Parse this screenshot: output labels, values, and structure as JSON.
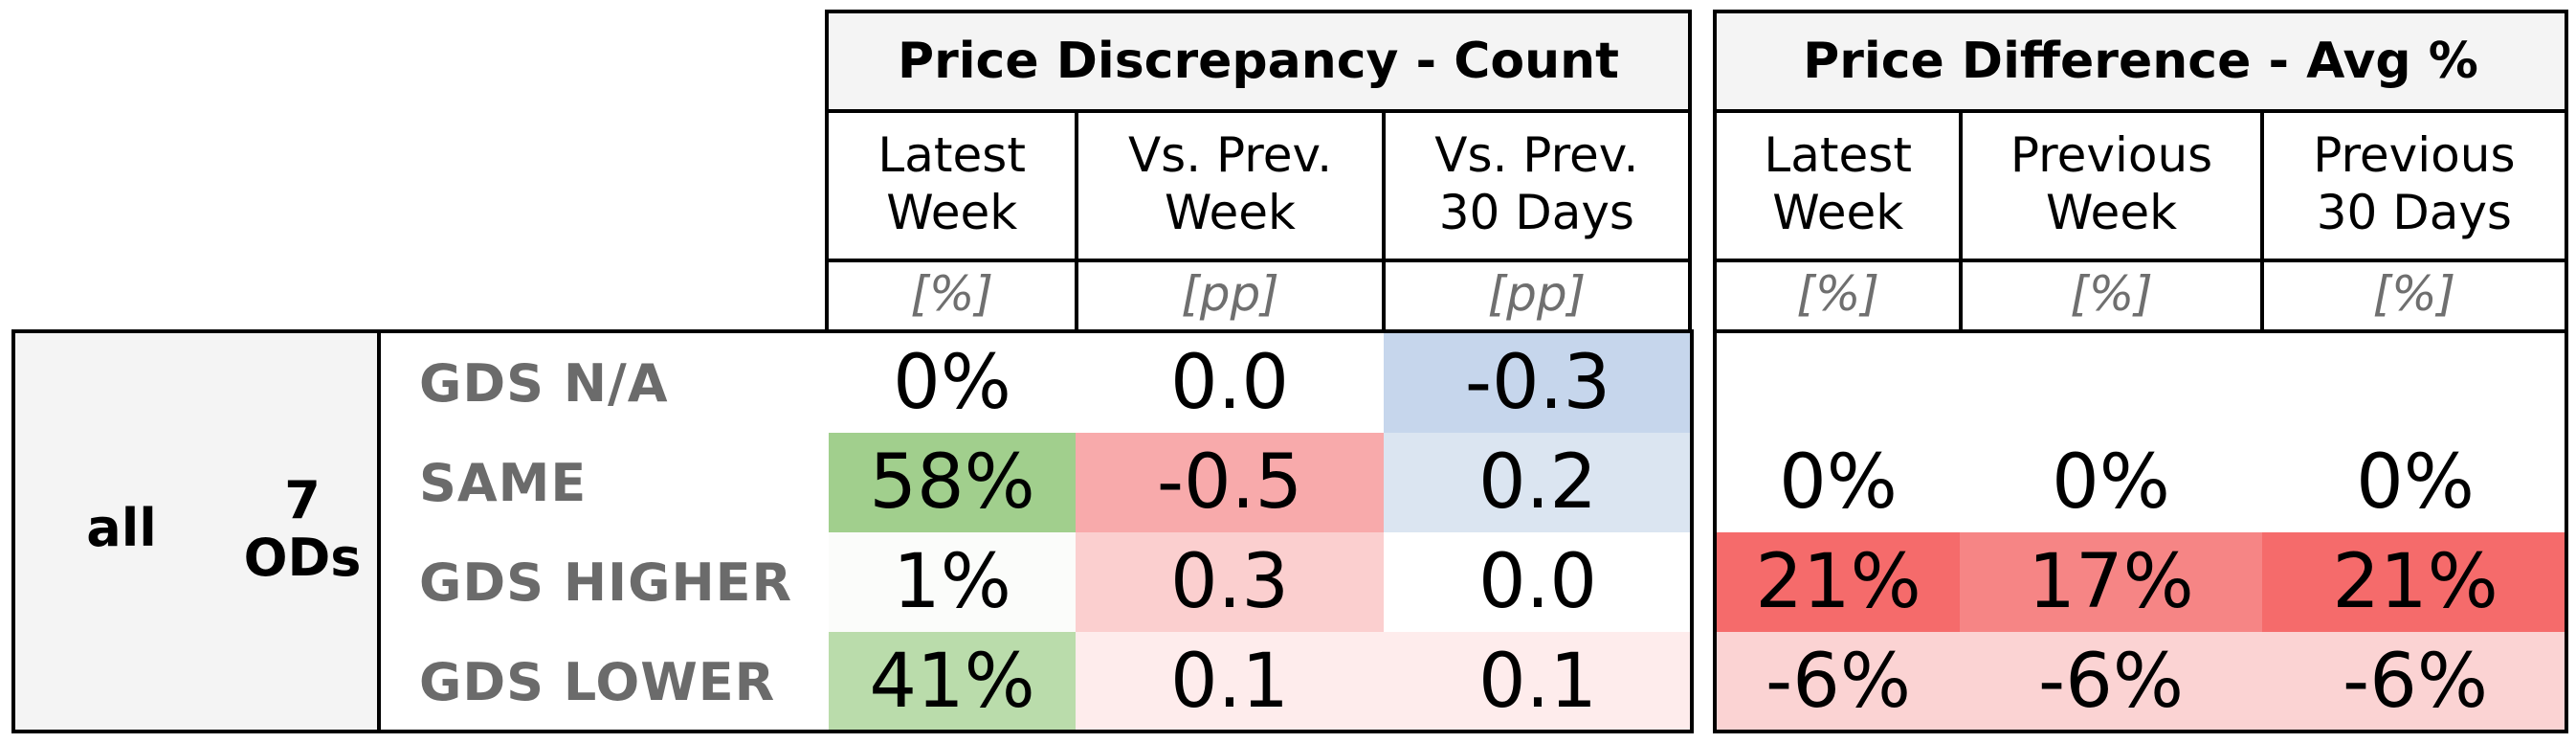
{
  "chart_data": {
    "type": "table",
    "segment": {
      "label": "all",
      "count_label": "7\nODs"
    },
    "groups": [
      {
        "title": "Price Discrepancy - Count",
        "columns": [
          {
            "header": "Latest\nWeek",
            "unit": "[%]"
          },
          {
            "header": "Vs. Prev.\nWeek",
            "unit": "[pp]"
          },
          {
            "header": "Vs. Prev.\n30 Days",
            "unit": "[pp]"
          }
        ]
      },
      {
        "title": "Price Difference - Avg %",
        "columns": [
          {
            "header": "Latest\nWeek",
            "unit": "[%]"
          },
          {
            "header": "Previous\nWeek",
            "unit": "[%]"
          },
          {
            "header": "Previous\n30 Days",
            "unit": "[%]"
          }
        ]
      }
    ],
    "rows": [
      {
        "label": "GDS N/A",
        "count": [
          {
            "text": "0%",
            "color": "#ffffff"
          },
          {
            "text": "0.0",
            "color": "#ffffff"
          },
          {
            "text": "-0.3",
            "color": "#c6d6ec"
          }
        ],
        "diff": [
          {
            "text": "",
            "color": "#ffffff"
          },
          {
            "text": "",
            "color": "#ffffff"
          },
          {
            "text": "",
            "color": "#ffffff"
          }
        ]
      },
      {
        "label": "SAME",
        "count": [
          {
            "text": "58%",
            "color": "#a1cf8d"
          },
          {
            "text": "-0.5",
            "color": "#f8aaab"
          },
          {
            "text": "0.2",
            "color": "#dbe5f1"
          }
        ],
        "diff": [
          {
            "text": "0%",
            "color": "#ffffff"
          },
          {
            "text": "0%",
            "color": "#ffffff"
          },
          {
            "text": "0%",
            "color": "#ffffff"
          }
        ]
      },
      {
        "label": "GDS HIGHER",
        "count": [
          {
            "text": "1%",
            "color": "#fbfcfa"
          },
          {
            "text": "0.3",
            "color": "#fbcfcf"
          },
          {
            "text": "0.0",
            "color": "#ffffff"
          }
        ],
        "diff": [
          {
            "text": "21%",
            "color": "#f56b6b"
          },
          {
            "text": "17%",
            "color": "#f68585"
          },
          {
            "text": "21%",
            "color": "#f56b6b"
          }
        ]
      },
      {
        "label": "GDS LOWER",
        "count": [
          {
            "text": "41%",
            "color": "#badcab"
          },
          {
            "text": "0.1",
            "color": "#feecec"
          },
          {
            "text": "0.1",
            "color": "#feecec"
          }
        ],
        "diff": [
          {
            "text": "-6%",
            "color": "#fbd3d3"
          },
          {
            "text": "-6%",
            "color": "#fbd3d3"
          },
          {
            "text": "-6%",
            "color": "#fbd3d3"
          }
        ]
      }
    ]
  }
}
